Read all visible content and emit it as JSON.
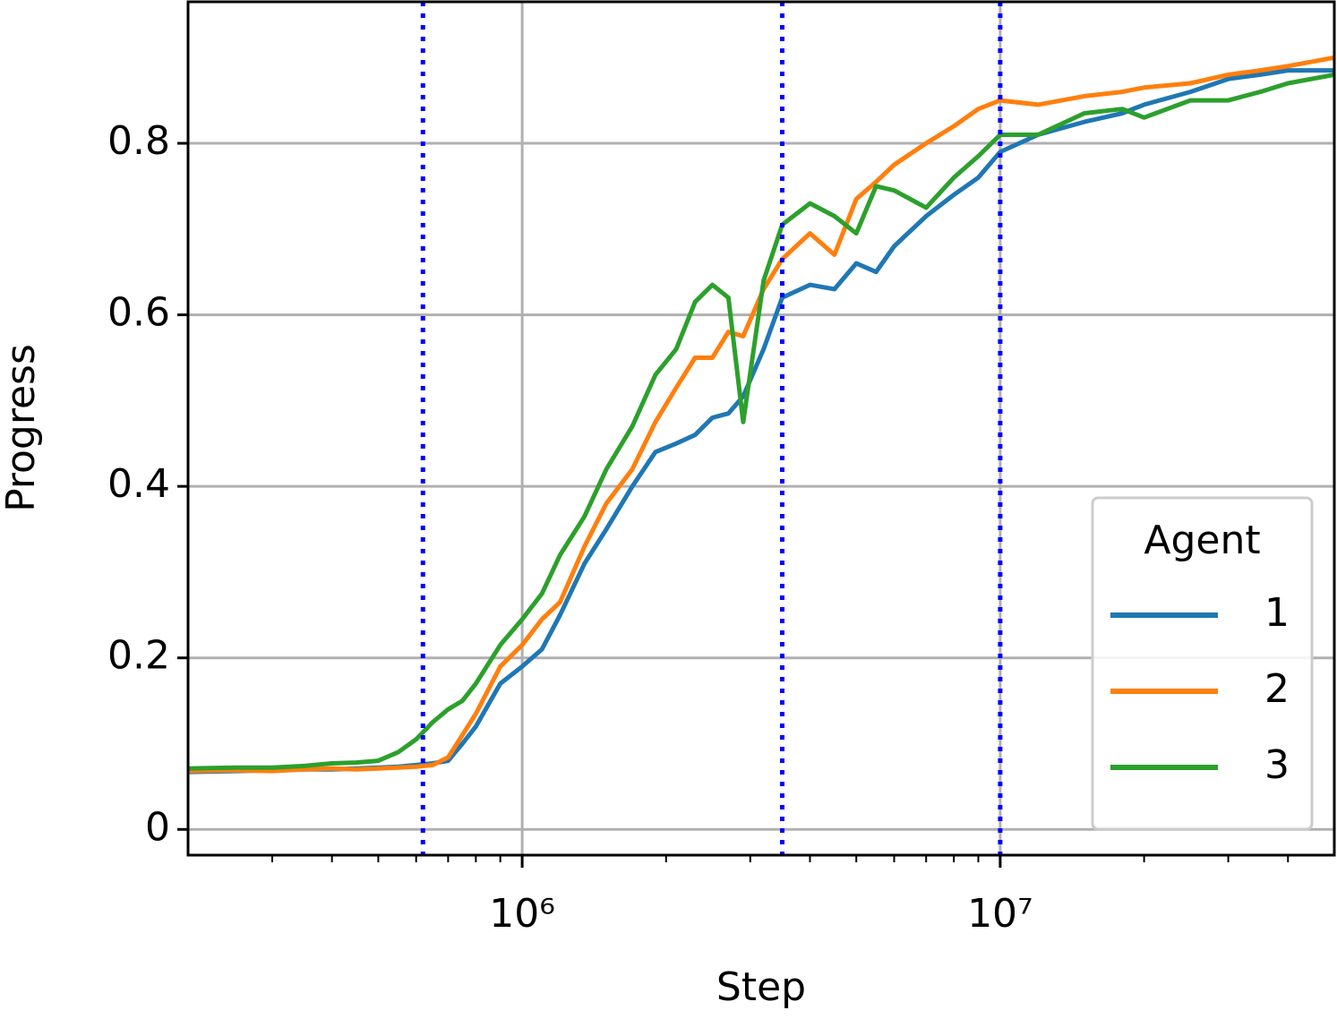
{
  "chart_data": {
    "type": "line",
    "xlabel": "Step",
    "ylabel": "Progress",
    "xscale": "log",
    "xlim": [
      200000,
      50000000
    ],
    "ylim": [
      -0.03,
      0.965
    ],
    "xticks": [
      {
        "value": 1000000,
        "label": "10⁶"
      },
      {
        "value": 10000000,
        "label": "10⁷"
      }
    ],
    "xminorticks": [
      300000,
      400000,
      500000,
      600000,
      700000,
      800000,
      900000,
      2000000,
      3000000,
      4000000,
      5000000,
      6000000,
      7000000,
      8000000,
      9000000,
      20000000,
      30000000,
      40000000
    ],
    "yticks": [
      0.0,
      0.2,
      0.4,
      0.6,
      0.8
    ],
    "grid": true,
    "vlines": [
      620000,
      3500000,
      10000000
    ],
    "vline_color": "#0000ff",
    "legend_title": "Agent",
    "legend_loc": "lower right",
    "x": [
      200000,
      250000,
      300000,
      350000,
      400000,
      450000,
      500000,
      550000,
      600000,
      650000,
      700000,
      750000,
      800000,
      900000,
      1000000,
      1100000,
      1200000,
      1350000,
      1500000,
      1700000,
      1900000,
      2100000,
      2300000,
      2500000,
      2700000,
      2900000,
      3200000,
      3500000,
      4000000,
      4500000,
      5000000,
      5500000,
      6000000,
      7000000,
      8000000,
      9000000,
      10000000,
      12000000,
      15000000,
      18000000,
      20000000,
      25000000,
      30000000,
      35000000,
      40000000,
      50000000
    ],
    "series": [
      {
        "name": "1",
        "color": "#1f77b4",
        "values": [
          0.067,
          0.068,
          0.069,
          0.07,
          0.07,
          0.071,
          0.072,
          0.073,
          0.075,
          0.077,
          0.08,
          0.1,
          0.12,
          0.17,
          0.19,
          0.21,
          0.25,
          0.31,
          0.35,
          0.4,
          0.44,
          0.45,
          0.46,
          0.48,
          0.485,
          0.505,
          0.56,
          0.62,
          0.635,
          0.63,
          0.66,
          0.65,
          0.68,
          0.715,
          0.74,
          0.76,
          0.79,
          0.81,
          0.825,
          0.835,
          0.845,
          0.86,
          0.875,
          0.88,
          0.885,
          0.885
        ]
      },
      {
        "name": "2",
        "color": "#ff7f0e",
        "values": [
          0.068,
          0.069,
          0.068,
          0.07,
          0.071,
          0.07,
          0.071,
          0.072,
          0.073,
          0.075,
          0.084,
          0.11,
          0.135,
          0.19,
          0.215,
          0.245,
          0.265,
          0.33,
          0.38,
          0.42,
          0.475,
          0.515,
          0.55,
          0.55,
          0.58,
          0.575,
          0.63,
          0.665,
          0.695,
          0.67,
          0.735,
          0.755,
          0.775,
          0.8,
          0.82,
          0.84,
          0.85,
          0.845,
          0.855,
          0.86,
          0.865,
          0.87,
          0.88,
          0.885,
          0.89,
          0.9
        ]
      },
      {
        "name": "3",
        "color": "#2ca02c",
        "values": [
          0.071,
          0.072,
          0.072,
          0.074,
          0.077,
          0.078,
          0.08,
          0.09,
          0.105,
          0.125,
          0.14,
          0.15,
          0.17,
          0.215,
          0.245,
          0.275,
          0.32,
          0.365,
          0.42,
          0.47,
          0.53,
          0.56,
          0.615,
          0.635,
          0.62,
          0.475,
          0.64,
          0.705,
          0.73,
          0.715,
          0.695,
          0.75,
          0.745,
          0.725,
          0.76,
          0.785,
          0.81,
          0.81,
          0.835,
          0.84,
          0.83,
          0.85,
          0.85,
          0.86,
          0.87,
          0.88
        ]
      }
    ]
  }
}
